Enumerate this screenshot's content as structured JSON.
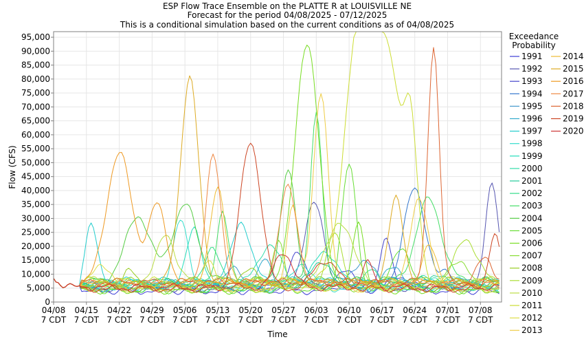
{
  "chart_data": {
    "type": "line",
    "title": "ESP Flow Trace Ensemble on the PLATTE R at LOUISVILLE NE",
    "subtitle1": "Forecast for the period 04/08/2025 - 07/12/2025",
    "subtitle2": "This is a conditional simulation based on the current conditions as of 04/08/2025",
    "xlabel": "Time",
    "ylabel": "Flow (CFS)",
    "ylim": [
      0,
      97000
    ],
    "xlim_days": [
      0,
      95.5
    ],
    "yticks": [
      "0",
      "5,000",
      "10,000",
      "15,000",
      "20,000",
      "25,000",
      "30,000",
      "35,000",
      "40,000",
      "45,000",
      "50,000",
      "55,000",
      "60,000",
      "65,000",
      "70,000",
      "75,000",
      "80,000",
      "85,000",
      "90,000",
      "95,000"
    ],
    "xticks": [
      {
        "day": 0,
        "date": "04/08",
        "tz": "7 CDT"
      },
      {
        "day": 7,
        "date": "04/15",
        "tz": "7 CDT"
      },
      {
        "day": 14,
        "date": "04/22",
        "tz": "7 CDT"
      },
      {
        "day": 21,
        "date": "04/29",
        "tz": "7 CDT"
      },
      {
        "day": 28,
        "date": "05/06",
        "tz": "7 CDT"
      },
      {
        "day": 35,
        "date": "05/13",
        "tz": "7 CDT"
      },
      {
        "day": 42,
        "date": "05/20",
        "tz": "7 CDT"
      },
      {
        "day": 49,
        "date": "05/27",
        "tz": "7 CDT"
      },
      {
        "day": 56,
        "date": "06/03",
        "tz": "7 CDT"
      },
      {
        "day": 63,
        "date": "06/10",
        "tz": "7 CDT"
      },
      {
        "day": 70,
        "date": "06/17",
        "tz": "7 CDT"
      },
      {
        "day": 77,
        "date": "06/24",
        "tz": "7 CDT"
      },
      {
        "day": 84,
        "date": "07/01",
        "tz": "7 CDT"
      },
      {
        "day": 91,
        "date": "07/08",
        "tz": "7 CDT"
      }
    ],
    "grid": true,
    "legend": {
      "title1": "Exceedance",
      "title2": "Probability",
      "placement": "right"
    },
    "series": [
      {
        "name": "1991",
        "color": "#3b3bd6",
        "peaks": [
          [
            62,
            12000
          ],
          [
            74,
            9000
          ]
        ]
      },
      {
        "name": "1992",
        "color": "#5555b0",
        "peaks": [
          [
            55.5,
            35500
          ],
          [
            93.5,
            43000
          ]
        ]
      },
      {
        "name": "1993",
        "color": "#4444cc",
        "peaks": [
          [
            52,
            19000
          ],
          [
            71,
            23000
          ]
        ]
      },
      {
        "name": "1994",
        "color": "#3377cc",
        "peaks": [
          [
            77,
            41000
          ],
          [
            84,
            11000
          ]
        ]
      },
      {
        "name": "1995",
        "color": "#4499cc",
        "peaks": [
          [
            38,
            12000
          ],
          [
            66,
            14000
          ]
        ]
      },
      {
        "name": "1996",
        "color": "#33aacc",
        "peaks": [
          [
            45,
            15000
          ],
          [
            72,
            12000
          ]
        ]
      },
      {
        "name": "1997",
        "color": "#22cccc",
        "peaks": [
          [
            8,
            28000
          ],
          [
            40,
            29000
          ]
        ]
      },
      {
        "name": "1998",
        "color": "#33ddcc",
        "peaks": [
          [
            27,
            30000
          ],
          [
            53,
            14000
          ]
        ]
      },
      {
        "name": "1999",
        "color": "#22ddbb",
        "peaks": [
          [
            30,
            27000
          ],
          [
            58,
            18000
          ]
        ]
      },
      {
        "name": "2000",
        "color": "#33ddaa",
        "peaks": [
          [
            46,
            20000
          ],
          [
            79,
            10000
          ]
        ]
      },
      {
        "name": "2001",
        "color": "#22cc99",
        "peaks": [
          [
            57,
            15000
          ],
          [
            83,
            9000
          ]
        ]
      },
      {
        "name": "2002",
        "color": "#33dd88",
        "peaks": [
          [
            34,
            20000
          ],
          [
            68,
            12000
          ]
        ]
      },
      {
        "name": "2003",
        "color": "#44dd66",
        "peaks": [
          [
            36,
            32000
          ],
          [
            56,
            69000
          ],
          [
            80,
            37000
          ]
        ]
      },
      {
        "name": "2004",
        "color": "#55cc44",
        "peaks": [
          [
            18,
            31000
          ],
          [
            28,
            35000
          ],
          [
            50,
            47000
          ]
        ]
      },
      {
        "name": "2005",
        "color": "#66dd33",
        "peaks": [
          [
            63,
            49000
          ],
          [
            74,
            20000
          ]
        ]
      },
      {
        "name": "2006",
        "color": "#77dd22",
        "peaks": [
          [
            54,
            92000
          ],
          [
            65,
            30000
          ]
        ]
      },
      {
        "name": "2007",
        "color": "#88dd33",
        "peaks": [
          [
            48,
            22000
          ],
          [
            86,
            15000
          ]
        ]
      },
      {
        "name": "2008",
        "color": "#99cc22",
        "peaks": [
          [
            16,
            12000
          ],
          [
            42,
            13000
          ]
        ]
      },
      {
        "name": "2009",
        "color": "#aadd33",
        "peaks": [
          [
            60,
            25000
          ],
          [
            88,
            22000
          ]
        ]
      },
      {
        "name": "2010",
        "color": "#bbdd44",
        "peaks": [
          [
            24,
            24000
          ],
          [
            61,
            29000
          ]
        ]
      },
      {
        "name": "2011",
        "color": "#ccdd33",
        "peaks": [
          [
            64.5,
            83000
          ],
          [
            68,
            70000
          ],
          [
            72,
            71000
          ],
          [
            76,
            66000
          ]
        ]
      },
      {
        "name": "2012",
        "color": "#dddd44",
        "peaks": [
          [
            10,
            14000
          ],
          [
            33,
            15000
          ]
        ]
      },
      {
        "name": "2013",
        "color": "#eecc44",
        "peaks": [
          [
            51,
            36000
          ],
          [
            57,
            76000
          ],
          [
            78,
            38000
          ]
        ]
      },
      {
        "name": "2014",
        "color": "#eebb33",
        "peaks": [
          [
            35,
            42000
          ],
          [
            80,
            20000
          ]
        ]
      },
      {
        "name": "2015",
        "color": "#ddaa22",
        "peaks": [
          [
            29,
            81000
          ],
          [
            73,
            37000
          ]
        ]
      },
      {
        "name": "2016",
        "color": "#ee9922",
        "peaks": [
          [
            14,
            54000
          ],
          [
            22,
            35000
          ]
        ]
      },
      {
        "name": "2017",
        "color": "#ee8844",
        "peaks": [
          [
            34,
            53000
          ],
          [
            50,
            41000
          ]
        ]
      },
      {
        "name": "2018",
        "color": "#dd6633",
        "peaks": [
          [
            81,
            92000
          ],
          [
            92,
            16000
          ]
        ]
      },
      {
        "name": "2019",
        "color": "#cc4422",
        "peaks": [
          [
            42,
            57000
          ],
          [
            58,
            15000
          ],
          [
            94,
            25000
          ]
        ]
      },
      {
        "name": "2020",
        "color": "#cc3333",
        "peaks": [
          [
            49,
            18000
          ],
          [
            67,
            14000
          ]
        ]
      }
    ]
  }
}
